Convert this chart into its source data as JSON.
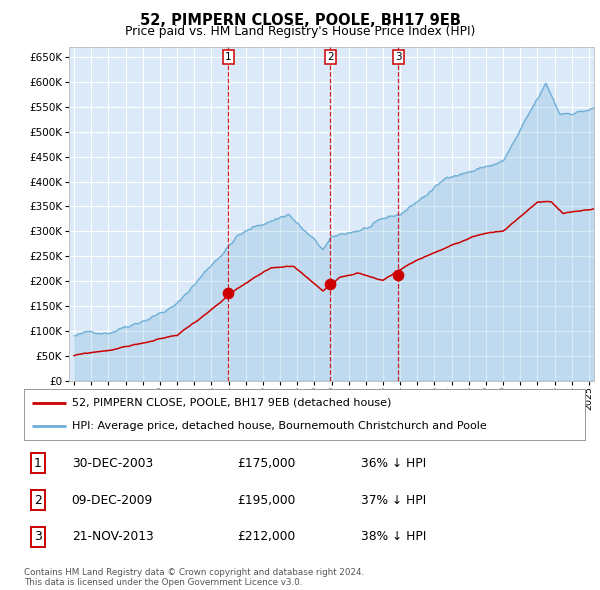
{
  "title": "52, PIMPERN CLOSE, POOLE, BH17 9EB",
  "subtitle": "Price paid vs. HM Land Registry's House Price Index (HPI)",
  "legend_line1": "52, PIMPERN CLOSE, POOLE, BH17 9EB (detached house)",
  "legend_line2": "HPI: Average price, detached house, Bournemouth Christchurch and Poole",
  "footnote1": "Contains HM Land Registry data © Crown copyright and database right 2024.",
  "footnote2": "This data is licensed under the Open Government Licence v3.0.",
  "transactions": [
    {
      "num": 1,
      "date": "30-DEC-2003",
      "price": "£175,000",
      "pct": "36% ↓ HPI"
    },
    {
      "num": 2,
      "date": "09-DEC-2009",
      "price": "£195,000",
      "pct": "37% ↓ HPI"
    },
    {
      "num": 3,
      "date": "21-NOV-2013",
      "price": "£212,000",
      "pct": "38% ↓ HPI"
    }
  ],
  "transaction_dates_decimal": [
    2003.99,
    2009.94,
    2013.9
  ],
  "transaction_prices": [
    175000,
    195000,
    212000
  ],
  "yticks": [
    0,
    50000,
    100000,
    150000,
    200000,
    250000,
    300000,
    350000,
    400000,
    450000,
    500000,
    550000,
    600000,
    650000
  ],
  "bg_color": "#dce9f8",
  "grid_color": "#ffffff",
  "hpi_color": "#6baed6",
  "price_color": "#cc0000",
  "vline_color": "#cc0000",
  "marker_color": "#cc0000",
  "xlim_left": 1994.7,
  "xlim_right": 2025.3,
  "ylim_top": 670000
}
